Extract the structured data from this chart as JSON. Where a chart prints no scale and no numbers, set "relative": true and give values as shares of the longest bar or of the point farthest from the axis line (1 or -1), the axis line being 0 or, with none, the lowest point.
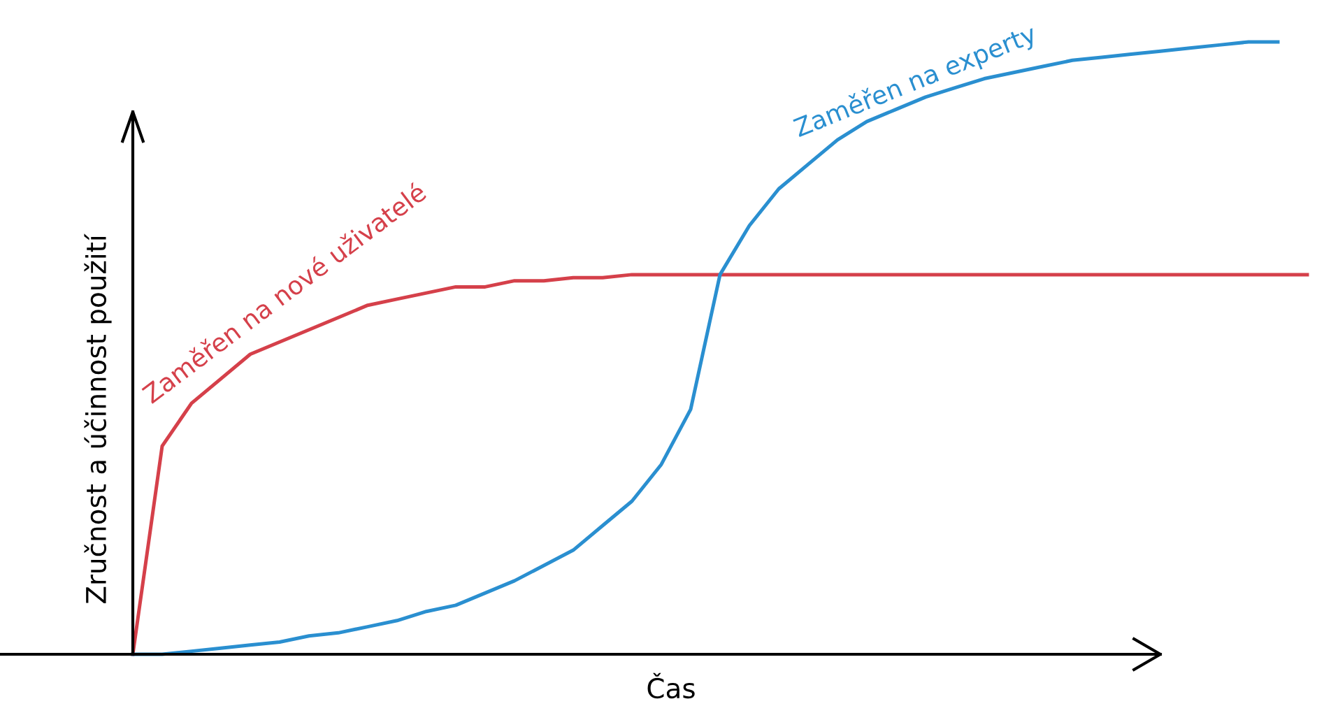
{
  "chart_data": {
    "type": "line",
    "relative": true,
    "xlabel": "Čas",
    "ylabel": "Zručnost a účinnost použití",
    "legend": false,
    "marker": "none",
    "line_style": "solid",
    "categories": [
      null,
      null,
      null,
      null,
      null,
      null,
      null,
      null,
      null,
      null,
      null,
      null,
      null,
      null,
      null,
      null,
      null,
      null,
      null,
      null,
      null,
      null,
      null,
      null,
      null,
      null,
      null,
      null,
      null,
      null,
      null,
      null,
      null,
      null,
      null,
      null,
      null,
      null,
      null,
      null,
      null
    ],
    "series": [
      {
        "name": "Zaměřen na nové uživatelé",
        "color": "#d5404a",
        "values": [
          0,
          0.34,
          0.41,
          0.45,
          0.49,
          0.51,
          0.53,
          0.55,
          0.57,
          0.58,
          0.59,
          0.6,
          0.6,
          0.61,
          0.61,
          0.615,
          0.615,
          0.62,
          0.62,
          0.62,
          0.62,
          0.62,
          0.62,
          0.62,
          0.62,
          0.62,
          0.62,
          0.62,
          0.62,
          0.62,
          0.62,
          0.62,
          0.62,
          0.62,
          0.62,
          0.62,
          0.62,
          0.62,
          0.62,
          0.62,
          0.62
        ]
      },
      {
        "name": "Zaměřen na experty",
        "color": "#2a8fd0",
        "values": [
          0,
          0,
          0.005,
          0.01,
          0.015,
          0.02,
          0.03,
          0.035,
          0.045,
          0.055,
          0.07,
          0.08,
          0.1,
          0.12,
          0.145,
          0.17,
          0.21,
          0.25,
          0.31,
          0.4,
          0.62,
          0.7,
          0.76,
          0.8,
          0.84,
          0.87,
          0.89,
          0.91,
          0.925,
          0.94,
          0.95,
          0.96,
          0.97,
          0.975,
          0.98,
          0.985,
          0.99,
          0.995,
          1,
          1,
          null
        ]
      }
    ]
  }
}
